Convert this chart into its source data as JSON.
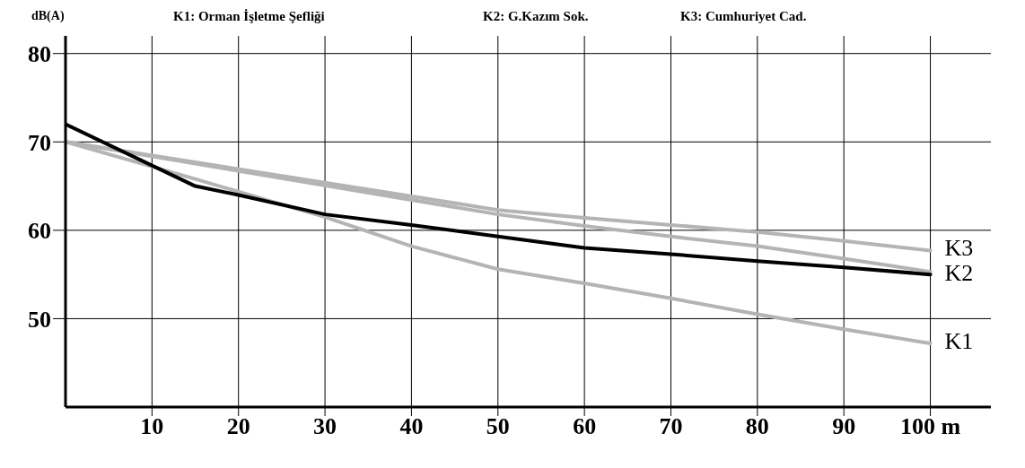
{
  "chart_data": {
    "type": "line",
    "ylabel": "dB(A)",
    "annotations": [
      "K1: Orman İşletme Şefliği",
      "K2: G.Kazım Sok.",
      "K3: Cumhuriyet Cad."
    ],
    "xlim": [
      0,
      107
    ],
    "xticks": [
      10,
      20,
      30,
      40,
      50,
      60,
      70,
      80,
      90,
      {
        "value": 100,
        "label": "100 m"
      }
    ],
    "ylim": [
      40,
      82
    ],
    "yticks": [
      50,
      60,
      70,
      80
    ],
    "grid": true,
    "legend": false,
    "marker": "none",
    "line_style": "solid",
    "series": [
      {
        "name": "K3",
        "color": "#b4b4b4",
        "x": [
          0,
          50,
          60,
          70,
          80,
          90,
          100
        ],
        "values": [
          70,
          62.3,
          61.4,
          60.6,
          59.8,
          58.8,
          57.7
        ]
      },
      {
        "name": "K2",
        "color": "#b4b4b4",
        "x": [
          0,
          50,
          60,
          70,
          80,
          90,
          100
        ],
        "values": [
          70,
          61.8,
          60.5,
          59.3,
          58.2,
          56.8,
          55.3
        ]
      },
      {
        "name": "K1",
        "color": "#b4b4b4",
        "x": [
          0,
          15,
          30,
          40,
          50,
          60,
          70,
          80,
          90,
          100
        ],
        "values": [
          70,
          65.8,
          61.5,
          58.2,
          55.6,
          54,
          52.3,
          50.5,
          48.8,
          47.2
        ]
      },
      {
        "color": "#000000",
        "x": [
          0,
          15,
          20,
          30,
          40,
          50,
          60,
          70,
          80,
          90,
          100
        ],
        "values": [
          72,
          65,
          64,
          61.8,
          60.6,
          59.3,
          58,
          57.3,
          56.5,
          55.8,
          55
        ]
      }
    ]
  }
}
